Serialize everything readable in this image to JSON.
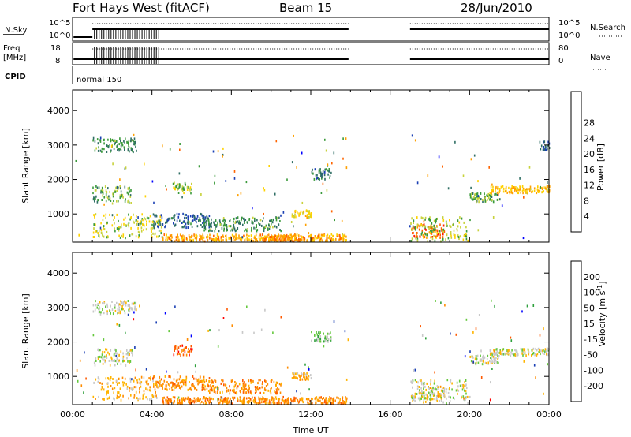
{
  "header": {
    "radar": "Fort Hays West (fitACF)",
    "beam": "Beam 15",
    "date": "28/Jun/2010"
  },
  "noise_panel": {
    "left_label": "N.Sky",
    "left_ticks": [
      "10^5",
      "10^0"
    ],
    "right_ticks": [
      "10^5",
      "10^0"
    ],
    "right_label": "N.Search"
  },
  "freq_panel": {
    "left_label_line1": "Freq",
    "left_label_line2": "[MHz]",
    "left_ticks": [
      "18",
      "8"
    ],
    "right_ticks": [
      "80",
      "0"
    ],
    "right_label": "Nave"
  },
  "cpid": {
    "label": "CPID",
    "mode": "normal 150"
  },
  "chart_data": [
    {
      "type": "heatmap",
      "name": "power",
      "ylabel": "Slant Range [km]",
      "yticks": [
        1000,
        2000,
        3000,
        4000
      ],
      "ylim": [
        180,
        4600
      ],
      "xlim_hours": [
        0,
        24
      ],
      "colorbar": {
        "label": "Power [dB]",
        "tick_labels": [
          "4",
          "8",
          "12",
          "16",
          "20",
          "24",
          "28"
        ],
        "colors": [
          "#0000ff",
          "#1a3fb4",
          "#2f6e64",
          "#3a9a3a",
          "#c8d23c",
          "#ffd200",
          "#ffa000",
          "#ff6400",
          "#ff1e00"
        ]
      },
      "echo_regions": [
        {
          "t0": 1.0,
          "t1": 3.0,
          "r0": 1300,
          "r1": 1800,
          "level": 12
        },
        {
          "t0": 1.0,
          "t1": 3.2,
          "r0": 2800,
          "r1": 3200,
          "level": 10
        },
        {
          "t0": 1.0,
          "t1": 4.5,
          "r0": 300,
          "r1": 1000,
          "level": 16
        },
        {
          "t0": 4.0,
          "t1": 7.0,
          "r0": 600,
          "r1": 1000,
          "level": 6
        },
        {
          "t0": 4.5,
          "t1": 13.8,
          "r0": 200,
          "r1": 400,
          "level": 22
        },
        {
          "t0": 5.0,
          "t1": 6.0,
          "r0": 1600,
          "r1": 1900,
          "level": 14
        },
        {
          "t0": 6.5,
          "t1": 10.5,
          "r0": 500,
          "r1": 900,
          "level": 10
        },
        {
          "t0": 9.5,
          "t1": 11.5,
          "r0": 200,
          "r1": 350,
          "level": 24
        },
        {
          "t0": 11.0,
          "t1": 12.0,
          "r0": 900,
          "r1": 1100,
          "level": 18
        },
        {
          "t0": 12.0,
          "t1": 13.0,
          "r0": 2000,
          "r1": 2300,
          "level": 8
        },
        {
          "t0": 17.0,
          "t1": 18.8,
          "r0": 300,
          "r1": 700,
          "level": 26
        },
        {
          "t0": 17.0,
          "t1": 20.0,
          "r0": 200,
          "r1": 900,
          "level": 14
        },
        {
          "t0": 20.0,
          "t1": 21.5,
          "r0": 1350,
          "r1": 1600,
          "level": 12
        },
        {
          "t0": 21.0,
          "t1": 24.0,
          "r0": 1600,
          "r1": 1800,
          "level": 20
        },
        {
          "t0": 23.5,
          "t1": 24.0,
          "r0": 2850,
          "r1": 3100,
          "level": 6
        }
      ]
    },
    {
      "type": "heatmap",
      "name": "velocity",
      "ylabel": "Slant Range [km]",
      "yticks": [
        1000,
        2000,
        3000,
        4000
      ],
      "ylim": [
        180,
        4600
      ],
      "xlim_hours": [
        0,
        24
      ],
      "xlabel": "Time UT",
      "xtick_labels": [
        "00:00",
        "04:00",
        "08:00",
        "12:00",
        "16:00",
        "20:00",
        "00:00"
      ],
      "xtick_hours": [
        0,
        4,
        8,
        12,
        16,
        20,
        24
      ],
      "colorbar": {
        "label": "Velocity [m s",
        "label_exp": "-1",
        "tick_labels": [
          "-200",
          "-100",
          "-50",
          "-15",
          "15",
          "50",
          "100",
          "200"
        ],
        "colors": [
          "#ff0000",
          "#ff5a00",
          "#ff8c00",
          "#ffb400",
          "#c8c8c8",
          "#64c83c",
          "#2ea03c",
          "#1a3fb4",
          "#0000ff"
        ]
      },
      "echo_regions": [
        {
          "t0": 1.0,
          "t1": 3.0,
          "r0": 1300,
          "r1": 1800,
          "level": 4
        },
        {
          "t0": 1.0,
          "t1": 3.2,
          "r0": 2800,
          "r1": 3200,
          "level": 4
        },
        {
          "t0": 1.0,
          "t1": 4.5,
          "r0": 300,
          "r1": 1000,
          "level": 3
        },
        {
          "t0": 4.0,
          "t1": 7.0,
          "r0": 600,
          "r1": 1000,
          "level": 2
        },
        {
          "t0": 4.5,
          "t1": 13.8,
          "r0": 200,
          "r1": 400,
          "level": 2
        },
        {
          "t0": 5.0,
          "t1": 6.0,
          "r0": 1600,
          "r1": 1900,
          "level": 1
        },
        {
          "t0": 6.5,
          "t1": 10.5,
          "r0": 500,
          "r1": 900,
          "level": 2
        },
        {
          "t0": 11.0,
          "t1": 12.0,
          "r0": 900,
          "r1": 1100,
          "level": 3
        },
        {
          "t0": 12.0,
          "t1": 13.0,
          "r0": 2000,
          "r1": 2300,
          "level": 5
        },
        {
          "t0": 17.0,
          "t1": 18.8,
          "r0": 300,
          "r1": 700,
          "level": 4
        },
        {
          "t0": 17.0,
          "t1": 20.0,
          "r0": 200,
          "r1": 900,
          "level": 4
        },
        {
          "t0": 20.0,
          "t1": 21.5,
          "r0": 1350,
          "r1": 1600,
          "level": 4
        },
        {
          "t0": 21.0,
          "t1": 24.0,
          "r0": 1600,
          "r1": 1800,
          "level": 4
        }
      ]
    }
  ]
}
